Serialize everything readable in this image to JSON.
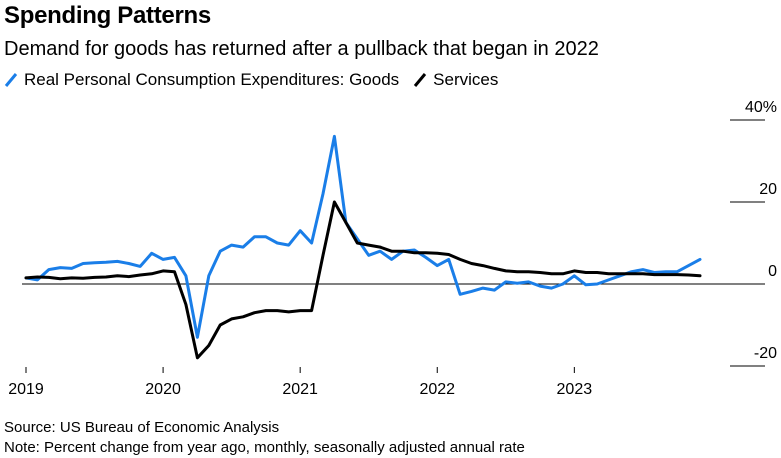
{
  "title": "Spending Patterns",
  "subtitle": "Demand for goods has returned after a pullback that began in 2022",
  "source": "Source: US Bureau of Economic Analysis",
  "note": "Note: Percent change from year ago, monthly, seasonally adjusted annual rate",
  "colors": {
    "goods": "#1a7ee8",
    "services": "#000000",
    "axis": "#000000"
  },
  "chart_data": {
    "type": "line",
    "y_unit": "%",
    "ylim": [
      -25,
      42
    ],
    "y_ticks": [
      40,
      20,
      0,
      -20
    ],
    "y_tick_labels": [
      "40%",
      "20",
      "0",
      "-20"
    ],
    "x_ticks": [
      "2019",
      "2020",
      "2021",
      "2022",
      "2023"
    ],
    "x_tick_dates": [
      "2019-01",
      "2020-01",
      "2021-01",
      "2022-01",
      "2023-01"
    ],
    "grid": false,
    "legend_position": "top-left",
    "x": [
      "2019-01",
      "2019-02",
      "2019-03",
      "2019-04",
      "2019-05",
      "2019-06",
      "2019-07",
      "2019-08",
      "2019-09",
      "2019-10",
      "2019-11",
      "2019-12",
      "2020-01",
      "2020-02",
      "2020-03",
      "2020-04",
      "2020-05",
      "2020-06",
      "2020-07",
      "2020-08",
      "2020-09",
      "2020-10",
      "2020-11",
      "2020-12",
      "2021-01",
      "2021-02",
      "2021-03",
      "2021-04",
      "2021-05",
      "2021-06",
      "2021-07",
      "2021-08",
      "2021-09",
      "2021-10",
      "2021-11",
      "2021-12",
      "2022-01",
      "2022-02",
      "2022-03",
      "2022-04",
      "2022-05",
      "2022-06",
      "2022-07",
      "2022-08",
      "2022-09",
      "2022-10",
      "2022-11",
      "2022-12",
      "2023-01",
      "2023-02",
      "2023-03",
      "2023-04",
      "2023-05",
      "2023-06",
      "2023-07",
      "2023-08",
      "2023-09",
      "2023-10",
      "2023-11",
      "2023-12"
    ],
    "series": [
      {
        "name": "Real Personal Consumption Expenditures: Goods",
        "color": "#1a7ee8",
        "values": [
          1.5,
          1.0,
          3.5,
          4.0,
          3.8,
          5.0,
          5.2,
          5.3,
          5.5,
          5.0,
          4.3,
          7.5,
          6.0,
          6.5,
          2.0,
          -13.0,
          2.0,
          8.0,
          9.5,
          9.0,
          11.5,
          11.5,
          10.0,
          9.5,
          13.0,
          10.0,
          22.0,
          36.0,
          15.0,
          11.0,
          7.0,
          8.0,
          6.0,
          8.0,
          8.3,
          6.5,
          4.5,
          6.0,
          -2.5,
          -1.8,
          -1.0,
          -1.5,
          0.5,
          0.2,
          0.5,
          -0.5,
          -1.0,
          0.0,
          2.0,
          -0.2,
          0.0,
          1.0,
          2.0,
          3.0,
          3.5,
          2.8,
          3.0,
          3.0,
          4.5,
          6.0
        ]
      },
      {
        "name": "Services",
        "color": "#000000",
        "values": [
          1.5,
          1.7,
          1.6,
          1.3,
          1.5,
          1.4,
          1.6,
          1.7,
          2.0,
          1.8,
          2.2,
          2.5,
          3.2,
          3.0,
          -5.0,
          -18.0,
          -15.0,
          -10.0,
          -8.5,
          -8.0,
          -7.0,
          -6.5,
          -6.5,
          -6.8,
          -6.5,
          -6.5,
          7.0,
          20.0,
          15.0,
          10.0,
          9.5,
          9.0,
          8.0,
          8.0,
          7.6,
          7.6,
          7.5,
          7.2,
          6.0,
          5.0,
          4.5,
          3.8,
          3.2,
          3.0,
          3.0,
          2.8,
          2.5,
          2.5,
          3.2,
          2.8,
          2.8,
          2.5,
          2.5,
          2.5,
          2.5,
          2.3,
          2.3,
          2.3,
          2.2,
          2.0
        ]
      }
    ]
  }
}
